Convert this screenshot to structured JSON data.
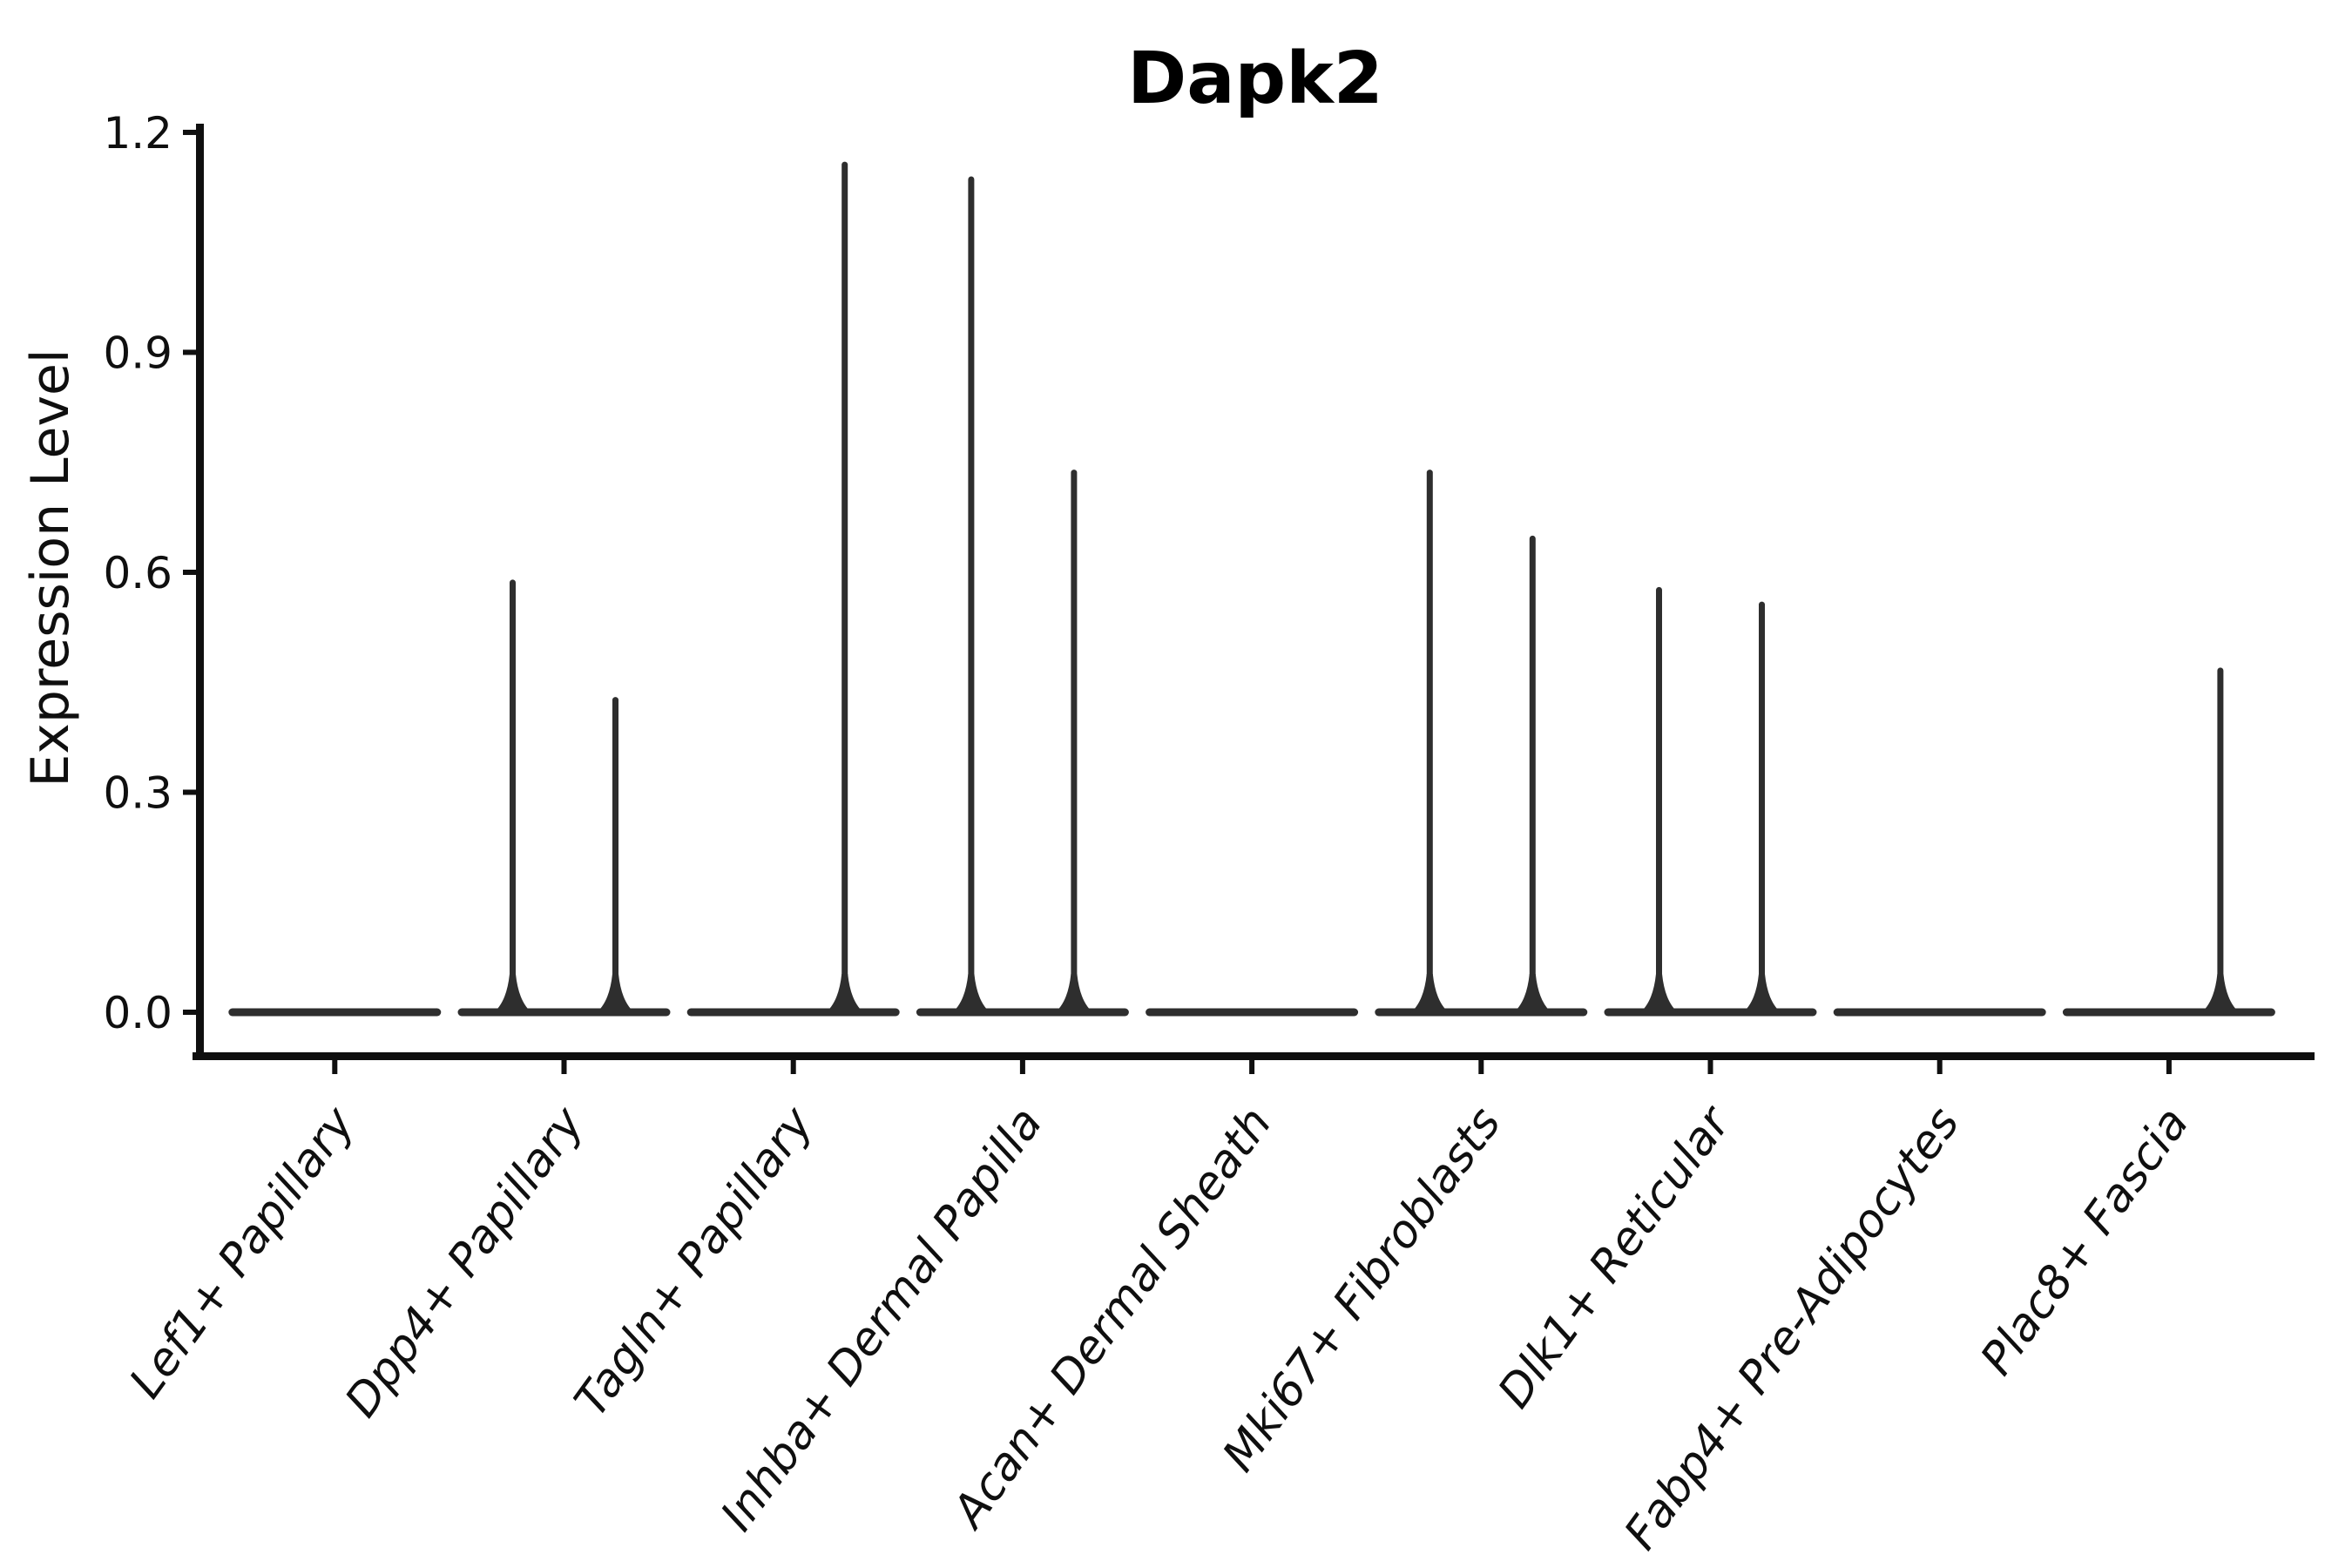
{
  "figure": {
    "title": "Dapk2",
    "ylabel": "Expression Level"
  },
  "chart_data": {
    "type": "violin",
    "title": "Dapk2",
    "xlabel": "",
    "ylabel": "Expression Level",
    "ylim": [
      0,
      1.2
    ],
    "yticks": [
      0.0,
      0.3,
      0.6,
      0.9,
      1.2
    ],
    "ytick_labels": [
      "0.0",
      "0.3",
      "0.6",
      "0.9",
      "1.2"
    ],
    "categories": [
      "Lef1+ Papillary",
      "Dpp4+ Papillary",
      "Tagln+ Papillary",
      "Inhba+ Dermal Papilla",
      "Acan+ Dermal Sheath",
      "Mki67+ Fibroblasts",
      "Dlk1+ Reticular",
      "Fabp4+ Pre-Adipocytes",
      "Plac8+ Fascia"
    ],
    "grid": false,
    "legend": false,
    "background": "#ffffff",
    "violin_color": "#2e2e2e",
    "axis_color": "#0f0f0f",
    "baseline_value": 0.0,
    "series": [
      {
        "name": "left-half-violin",
        "max_expression": [
          0,
          0.59,
          0,
          1.14,
          0,
          0.74,
          0.58,
          0,
          0
        ]
      },
      {
        "name": "right-half-violin",
        "max_expression": [
          0,
          0.43,
          1.16,
          0.74,
          0,
          0.65,
          0.56,
          0,
          0.47
        ]
      }
    ]
  }
}
